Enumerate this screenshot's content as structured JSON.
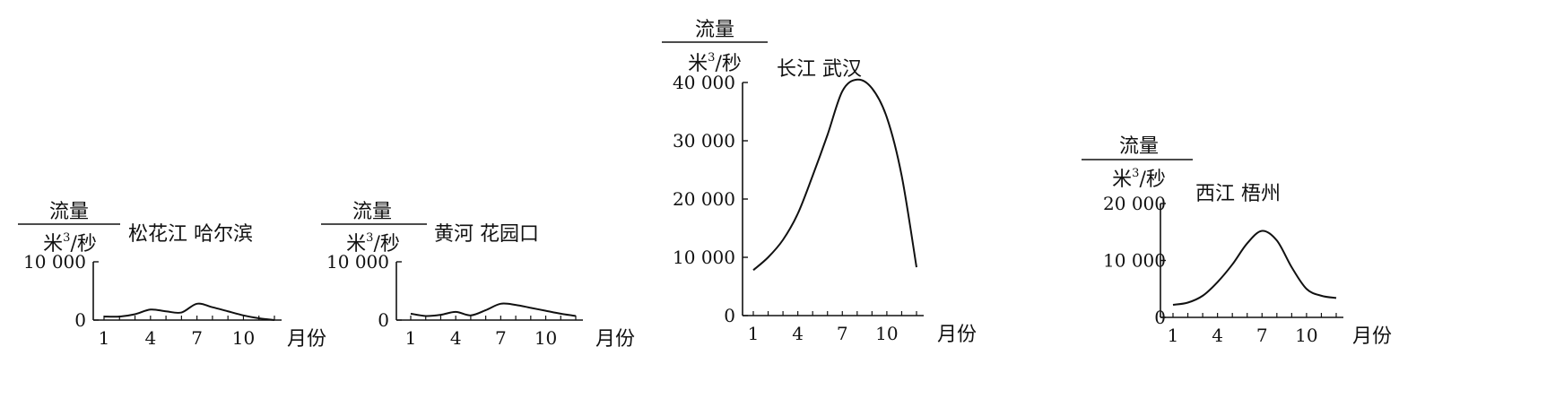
{
  "chart_data": [
    {
      "type": "line",
      "title": "松花江  哈尔滨",
      "ylabel_top": "流量",
      "ylabel_bottom_base": "米",
      "ylabel_bottom_sup": "3",
      "ylabel_bottom_rest": "/秒",
      "xlabel": "月份",
      "xlim": [
        1,
        12
      ],
      "ylim": [
        0,
        10000
      ],
      "yticks": [
        0,
        10000
      ],
      "ytick_labels": [
        "0",
        "10 000"
      ],
      "xticks": [
        1,
        4,
        7,
        10
      ],
      "xtick_labels": [
        "1",
        "4",
        "7",
        "10"
      ],
      "series": [
        {
          "x": [
            1,
            2,
            3,
            4,
            5,
            6,
            7,
            8,
            9,
            10,
            11,
            12
          ],
          "y": [
            600,
            600,
            1000,
            1800,
            1500,
            1300,
            2800,
            2200,
            1500,
            800,
            300,
            0
          ]
        }
      ]
    },
    {
      "type": "line",
      "title": "黄河   花园口",
      "ylabel_top": "流量",
      "ylabel_bottom_base": "米",
      "ylabel_bottom_sup": "3",
      "ylabel_bottom_rest": "/秒",
      "xlabel": "月份",
      "xlim": [
        1,
        12
      ],
      "ylim": [
        0,
        10000
      ],
      "yticks": [
        0,
        10000
      ],
      "ytick_labels": [
        "0",
        "10 000"
      ],
      "xticks": [
        1,
        4,
        7,
        10
      ],
      "xtick_labels": [
        "1",
        "4",
        "7",
        "10"
      ],
      "series": [
        {
          "x": [
            1,
            2,
            3,
            4,
            5,
            6,
            7,
            8,
            9,
            10,
            11,
            12
          ],
          "y": [
            1100,
            700,
            900,
            1400,
            800,
            1700,
            2800,
            2600,
            2100,
            1600,
            1100,
            700
          ]
        }
      ]
    },
    {
      "type": "line",
      "title": "长江   武汉",
      "ylabel_top": "流量",
      "ylabel_bottom_base": "米",
      "ylabel_bottom_sup": "3",
      "ylabel_bottom_rest": "/秒",
      "xlabel": "月份",
      "xlim": [
        1,
        12
      ],
      "ylim": [
        0,
        40000
      ],
      "yticks": [
        0,
        10000,
        20000,
        30000,
        40000
      ],
      "ytick_labels": [
        "0",
        "10 000",
        "20 000",
        "30 000",
        "40 000"
      ],
      "xticks": [
        1,
        4,
        7,
        10
      ],
      "xtick_labels": [
        "1",
        "4",
        "7",
        "10"
      ],
      "series": [
        {
          "x": [
            1,
            2,
            3,
            4,
            5,
            6,
            7,
            8,
            9,
            10,
            11,
            12
          ],
          "y": [
            7800,
            10000,
            13000,
            17500,
            24000,
            31000,
            38500,
            40500,
            39000,
            34000,
            24000,
            8300
          ]
        }
      ]
    },
    {
      "type": "line",
      "title": "西江  梧州",
      "ylabel_top": "流量",
      "ylabel_bottom_base": "米",
      "ylabel_bottom_sup": "3",
      "ylabel_bottom_rest": "/秒",
      "xlabel": "月份",
      "xlim": [
        1,
        12
      ],
      "ylim": [
        0,
        20000
      ],
      "yticks": [
        0,
        10000,
        20000
      ],
      "ytick_labels": [
        "0",
        "10 000",
        "20 000"
      ],
      "xticks": [
        1,
        4,
        7,
        10
      ],
      "xtick_labels": [
        "1",
        "4",
        "7",
        "10"
      ],
      "series": [
        {
          "x": [
            1,
            2,
            3,
            4,
            5,
            6,
            7,
            8,
            9,
            10,
            11,
            12
          ],
          "y": [
            2200,
            2600,
            3800,
            6200,
            9300,
            13000,
            15200,
            13500,
            8800,
            5000,
            3800,
            3400
          ]
        }
      ]
    }
  ]
}
